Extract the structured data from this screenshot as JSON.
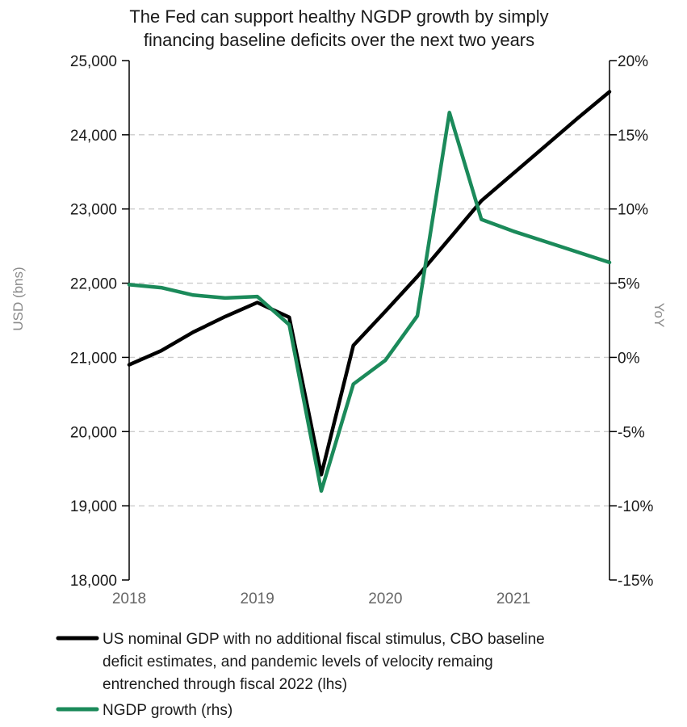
{
  "chart_data": {
    "type": "line",
    "title": [
      "The Fed can support healthy NGDP growth by simply",
      "financing baseline deficits over the next two years"
    ],
    "y_left": {
      "label": "USD (bns)",
      "range": [
        18000,
        25000
      ],
      "ticks": [
        18000,
        19000,
        20000,
        21000,
        22000,
        23000,
        24000,
        25000
      ],
      "tick_labels": [
        "18,000",
        "19,000",
        "20,000",
        "21,000",
        "22,000",
        "23,000",
        "24,000",
        "25,000"
      ]
    },
    "y_right": {
      "label": "YoY",
      "range": [
        -0.15,
        0.2
      ],
      "ticks": [
        -0.15,
        -0.1,
        -0.05,
        0,
        0.05,
        0.1,
        0.15,
        0.2
      ],
      "tick_labels": [
        "-15%",
        "-10%",
        "-5%",
        "0%",
        "5%",
        "10%",
        "15%",
        "20%"
      ]
    },
    "x_axis": {
      "range": [
        2018.0,
        2021.75
      ],
      "ticks": [
        2018,
        2019,
        2020,
        2021
      ],
      "tick_labels": [
        "2018",
        "2019",
        "2020",
        "2021"
      ]
    },
    "grid": "horizontal-dashed",
    "legend_placement": "bottom",
    "series": [
      {
        "name": "US nominal GDP with no additional fiscal stimulus, CBO baseline deficit estimates, and pandemic levels of velocity remaing entrenched through fiscal 2022 (lhs)",
        "legend_lines": [
          "US nominal GDP with no additional fiscal stimulus, CBO baseline",
          "deficit estimates, and pandemic levels of velocity remaing",
          "entrenched through fiscal 2022 (lhs)"
        ],
        "axis": "left",
        "color": "#000000",
        "x": [
          2018.0,
          2018.25,
          2018.5,
          2018.75,
          2019.0,
          2019.25,
          2019.5,
          2019.75,
          2020.0,
          2020.25,
          2020.5,
          2020.75,
          2021.0,
          2021.25,
          2021.5,
          2021.75
        ],
        "values": [
          20900,
          21090,
          21340,
          21550,
          21740,
          21540,
          19420,
          21160,
          21620,
          22090,
          22600,
          23110,
          23480,
          23850,
          24220,
          24580
        ]
      },
      {
        "name": "NGDP growth (rhs)",
        "legend_lines": [
          "NGDP growth (rhs)"
        ],
        "axis": "right",
        "color": "#1b8a5a",
        "x": [
          2018.0,
          2018.25,
          2018.5,
          2018.75,
          2019.0,
          2019.25,
          2019.5,
          2019.75,
          2020.0,
          2020.25,
          2020.5,
          2020.75,
          2021.0,
          2021.25,
          2021.5,
          2021.75
        ],
        "values": [
          0.049,
          0.047,
          0.042,
          0.04,
          0.041,
          0.022,
          -0.09,
          -0.018,
          -0.002,
          0.028,
          0.165,
          0.093,
          0.085,
          0.078,
          0.071,
          0.064
        ]
      }
    ]
  }
}
